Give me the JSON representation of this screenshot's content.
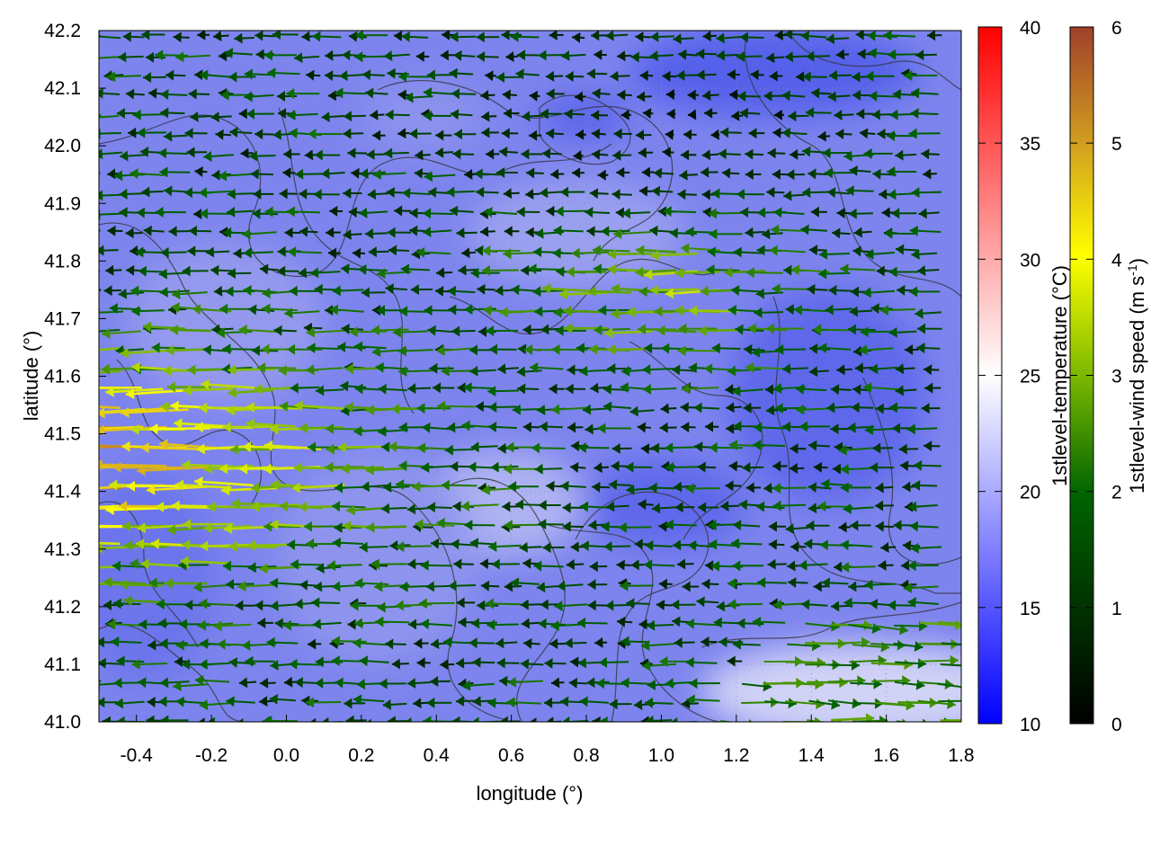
{
  "chart_data": {
    "type": "heatmap",
    "subtype": "vector-field-with-contours",
    "xlabel": "longitude (°)",
    "ylabel": "latitude (°)",
    "xlim": [
      -0.5,
      1.8
    ],
    "ylim": [
      41.0,
      42.2
    ],
    "xticks": [
      "-0.4",
      "-0.2",
      "0.0",
      "0.2",
      "0.4",
      "0.6",
      "0.8",
      "1.0",
      "1.2",
      "1.4",
      "1.6",
      "1.8"
    ],
    "yticks": [
      "41.0",
      "41.1",
      "41.2",
      "41.3",
      "41.4",
      "41.5",
      "41.6",
      "41.7",
      "41.8",
      "41.9",
      "42.0",
      "42.1",
      "42.2"
    ],
    "grid": true,
    "temperature_colorbar": {
      "label": "1stlevel-temperature (°C)",
      "range": [
        10,
        40
      ],
      "ticks": [
        "10",
        "15",
        "20",
        "25",
        "30",
        "35",
        "40"
      ],
      "colors": [
        "#0000ff",
        "#ffffff",
        "#ff0000"
      ]
    },
    "wind_colorbar": {
      "label_main": "1stlevel-wind speed (m s",
      "label_sup": "-1",
      "label_end": ")",
      "range": [
        0,
        6
      ],
      "ticks": [
        "0",
        "1",
        "2",
        "3",
        "4",
        "5",
        "6"
      ],
      "colors": [
        "#000000",
        "#006400",
        "#7cb800",
        "#ffff00",
        "#d2a020",
        "#a0402a"
      ]
    },
    "field_description": {
      "temperature_typical": 17,
      "wind_direction": "mostly westward (easterly flow); eastward in the south-east corner",
      "strong_wind_region": "west side near 41.3-41.6 °N, up to about 5 m s-1"
    }
  }
}
